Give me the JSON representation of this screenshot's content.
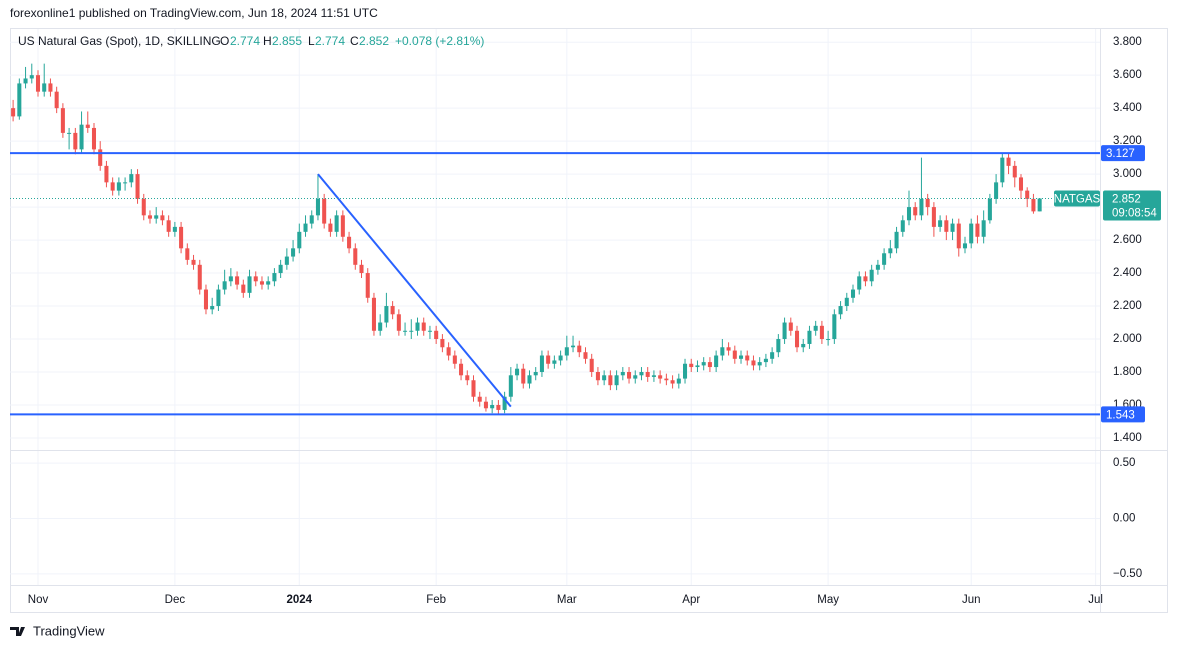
{
  "header": {
    "text": "forexonline1 published on TradingView.com, Jun 18, 2024 11:51 UTC"
  },
  "footer": {
    "brand": "TradingView"
  },
  "chart_data": {
    "type": "candlestick",
    "title": "US Natural Gas (Spot), 1D, SKILLING",
    "ohlc_labels": [
      "O",
      "H",
      "L",
      "C"
    ],
    "change": "+0.078 (+2.81%)",
    "symbol_tag": "NATGAS",
    "countdown": "09:08:54",
    "up_color": "#26a69a",
    "down_color": "#ef5350",
    "line_color": "#2962ff",
    "grid": true,
    "xlim": [
      -0.5,
      174.7
    ],
    "xticks": [
      {
        "value": 4,
        "label": "Nov"
      },
      {
        "value": 26,
        "label": "Dec"
      },
      {
        "value": 46,
        "label": "2024"
      },
      {
        "value": 68,
        "label": "Feb"
      },
      {
        "value": 89,
        "label": "Mar"
      },
      {
        "value": 109,
        "label": "Apr"
      },
      {
        "value": 131,
        "label": "May"
      },
      {
        "value": 154,
        "label": "Jun"
      },
      {
        "value": 174,
        "label": "Jul"
      }
    ],
    "ylim": [
      1.327,
      3.88
    ],
    "yticks": [
      {
        "value": 1.4,
        "label": "1.400"
      },
      {
        "value": 1.6,
        "label": "1.600"
      },
      {
        "value": 1.8,
        "label": "1.800"
      },
      {
        "value": 2.0,
        "label": "2.000"
      },
      {
        "value": 2.2,
        "label": "2.200"
      },
      {
        "value": 2.4,
        "label": "2.400"
      },
      {
        "value": 2.6,
        "label": "2.600"
      },
      {
        "value": 2.8,
        "label": "2.800"
      },
      {
        "value": 3.0,
        "label": "3.000"
      },
      {
        "value": 3.2,
        "label": "3.200"
      },
      {
        "value": 3.4,
        "label": "3.400"
      },
      {
        "value": 3.6,
        "label": "3.600"
      },
      {
        "value": 3.8,
        "label": "3.800"
      }
    ],
    "hlines": [
      3.127,
      1.543
    ],
    "trendline": {
      "x": [
        49,
        80
      ],
      "y": [
        3.0,
        1.59
      ]
    },
    "indicator": {
      "ylim": [
        -0.6,
        0.61
      ],
      "yticks": [
        {
          "value": 0.5,
          "label": "0.50"
        },
        {
          "value": 0,
          "label": "0.00"
        },
        {
          "value": -0.5,
          "label": "−0.50"
        }
      ]
    },
    "open": [
      3.4,
      3.35,
      3.55,
      3.58,
      3.6,
      3.5,
      3.55,
      3.5,
      3.4,
      3.25,
      3.25,
      3.15,
      3.3,
      3.28,
      3.15,
      3.05,
      2.95,
      2.9,
      2.95,
      2.95,
      3.0,
      2.85,
      2.75,
      2.73,
      2.75,
      2.72,
      2.65,
      2.68,
      2.55,
      2.48,
      2.45,
      2.3,
      2.18,
      2.2,
      2.3,
      2.35,
      2.38,
      2.33,
      2.28,
      2.38,
      2.35,
      2.33,
      2.35,
      2.4,
      2.45,
      2.5,
      2.55,
      2.65,
      2.7,
      2.75,
      2.85,
      2.7,
      2.65,
      2.75,
      2.62,
      2.55,
      2.45,
      2.4,
      2.25,
      2.05,
      2.1,
      2.2,
      2.15,
      2.05,
      2.05,
      2.05,
      2.1,
      2.05,
      2.05,
      2.0,
      1.95,
      1.9,
      1.85,
      1.78,
      1.75,
      1.65,
      1.62,
      1.58,
      1.6,
      1.57,
      1.65,
      1.78,
      1.82,
      1.73,
      1.78,
      1.8,
      1.9,
      1.85,
      1.87,
      1.9,
      1.95,
      1.96,
      1.92,
      1.88,
      1.8,
      1.75,
      1.78,
      1.72,
      1.78,
      1.8,
      1.76,
      1.78,
      1.8,
      1.77,
      1.78,
      1.76,
      1.75,
      1.73,
      1.76,
      1.85,
      1.83,
      1.84,
      1.86,
      1.83,
      1.9,
      1.95,
      1.93,
      1.88,
      1.9,
      1.87,
      1.84,
      1.86,
      1.88,
      1.92,
      2.0,
      2.1,
      2.05,
      1.95,
      1.97,
      2.05,
      2.08,
      2.0,
      2.0,
      2.15,
      2.2,
      2.25,
      2.3,
      2.38,
      2.35,
      2.42,
      2.45,
      2.52,
      2.55,
      2.65,
      2.72,
      2.8,
      2.75,
      2.85,
      2.8,
      2.68,
      2.72,
      2.65,
      2.7,
      2.55,
      2.58,
      2.7,
      2.62,
      2.72,
      2.85,
      2.95,
      3.1,
      3.05,
      2.98,
      2.9,
      2.85,
      2.774
    ],
    "high": [
      3.45,
      3.58,
      3.65,
      3.67,
      3.63,
      3.67,
      3.58,
      3.53,
      3.43,
      3.28,
      3.28,
      3.38,
      3.38,
      3.31,
      3.2,
      3.08,
      2.98,
      2.98,
      2.98,
      3.03,
      3.03,
      2.88,
      2.78,
      2.8,
      2.78,
      2.75,
      2.71,
      2.71,
      2.58,
      2.51,
      2.48,
      2.33,
      2.25,
      2.33,
      2.42,
      2.43,
      2.41,
      2.36,
      2.42,
      2.41,
      2.38,
      2.38,
      2.43,
      2.48,
      2.55,
      2.6,
      2.7,
      2.75,
      2.78,
      3.0,
      2.88,
      2.73,
      2.78,
      2.78,
      2.65,
      2.58,
      2.48,
      2.43,
      2.28,
      2.15,
      2.28,
      2.23,
      2.18,
      2.1,
      2.12,
      2.13,
      2.13,
      2.08,
      2.08,
      2.03,
      1.98,
      1.93,
      1.88,
      1.81,
      1.78,
      1.68,
      1.65,
      1.63,
      1.63,
      1.68,
      1.83,
      1.85,
      1.85,
      1.81,
      1.83,
      1.93,
      1.93,
      1.9,
      1.93,
      2.02,
      2.02,
      1.99,
      1.95,
      1.91,
      1.83,
      1.81,
      1.81,
      1.81,
      1.83,
      1.83,
      1.81,
      1.83,
      1.83,
      1.81,
      1.81,
      1.79,
      1.78,
      1.79,
      1.88,
      1.88,
      1.87,
      1.89,
      1.89,
      1.93,
      2.0,
      1.98,
      1.96,
      1.93,
      1.93,
      1.9,
      1.89,
      1.91,
      1.95,
      2.03,
      2.13,
      2.13,
      2.08,
      2.0,
      2.08,
      2.11,
      2.11,
      2.05,
      2.18,
      2.23,
      2.28,
      2.33,
      2.41,
      2.41,
      2.45,
      2.48,
      2.55,
      2.6,
      2.68,
      2.75,
      2.9,
      2.83,
      3.1,
      2.88,
      2.83,
      2.75,
      2.75,
      2.73,
      2.73,
      2.62,
      2.73,
      2.75,
      2.78,
      2.88,
      3.0,
      3.13,
      3.13,
      3.08,
      3.0,
      2.92,
      2.88,
      2.855
    ],
    "low": [
      3.32,
      3.33,
      3.52,
      3.55,
      3.47,
      3.47,
      3.47,
      3.37,
      3.22,
      3.15,
      3.12,
      3.13,
      3.25,
      3.12,
      3.02,
      2.92,
      2.87,
      2.87,
      2.9,
      2.92,
      2.82,
      2.72,
      2.7,
      2.7,
      2.69,
      2.62,
      2.62,
      2.52,
      2.45,
      2.42,
      2.27,
      2.15,
      2.15,
      2.17,
      2.27,
      2.32,
      2.3,
      2.25,
      2.25,
      2.32,
      2.3,
      2.3,
      2.32,
      2.37,
      2.42,
      2.47,
      2.52,
      2.62,
      2.67,
      2.72,
      2.67,
      2.62,
      2.62,
      2.59,
      2.52,
      2.42,
      2.37,
      2.22,
      2.02,
      2.02,
      2.07,
      2.12,
      2.02,
      2.02,
      2.0,
      2.02,
      2.02,
      2.0,
      1.97,
      1.92,
      1.87,
      1.82,
      1.75,
      1.72,
      1.62,
      1.59,
      1.56,
      1.55,
      1.543,
      1.55,
      1.62,
      1.75,
      1.7,
      1.7,
      1.75,
      1.77,
      1.82,
      1.82,
      1.84,
      1.87,
      1.92,
      1.89,
      1.85,
      1.77,
      1.72,
      1.72,
      1.69,
      1.69,
      1.75,
      1.73,
      1.73,
      1.75,
      1.74,
      1.74,
      1.73,
      1.72,
      1.7,
      1.7,
      1.73,
      1.8,
      1.8,
      1.81,
      1.8,
      1.8,
      1.87,
      1.9,
      1.85,
      1.85,
      1.84,
      1.81,
      1.81,
      1.83,
      1.85,
      1.89,
      1.97,
      2.02,
      1.92,
      1.92,
      1.94,
      2.02,
      1.97,
      1.96,
      1.97,
      2.12,
      2.17,
      2.22,
      2.27,
      2.32,
      2.32,
      2.39,
      2.42,
      2.49,
      2.52,
      2.62,
      2.69,
      2.72,
      2.72,
      2.75,
      2.62,
      2.65,
      2.6,
      2.6,
      2.5,
      2.52,
      2.55,
      2.58,
      2.58,
      2.7,
      2.82,
      2.92,
      3.0,
      2.92,
      2.85,
      2.8,
      2.76,
      2.774
    ],
    "close": [
      3.35,
      3.55,
      3.58,
      3.6,
      3.5,
      3.55,
      3.5,
      3.4,
      3.25,
      3.25,
      3.15,
      3.3,
      3.28,
      3.15,
      3.05,
      2.95,
      2.9,
      2.95,
      2.95,
      3.0,
      2.85,
      2.75,
      2.73,
      2.75,
      2.72,
      2.65,
      2.68,
      2.55,
      2.48,
      2.45,
      2.3,
      2.18,
      2.2,
      2.3,
      2.35,
      2.38,
      2.33,
      2.28,
      2.38,
      2.35,
      2.33,
      2.35,
      2.4,
      2.45,
      2.5,
      2.55,
      2.65,
      2.7,
      2.75,
      2.85,
      2.7,
      2.65,
      2.75,
      2.62,
      2.55,
      2.45,
      2.4,
      2.25,
      2.05,
      2.1,
      2.2,
      2.15,
      2.05,
      2.05,
      2.05,
      2.1,
      2.05,
      2.05,
      2.0,
      1.95,
      1.9,
      1.85,
      1.78,
      1.75,
      1.65,
      1.62,
      1.58,
      1.6,
      1.57,
      1.65,
      1.78,
      1.82,
      1.73,
      1.78,
      1.8,
      1.9,
      1.85,
      1.87,
      1.9,
      1.95,
      1.96,
      1.92,
      1.88,
      1.8,
      1.75,
      1.78,
      1.72,
      1.78,
      1.8,
      1.76,
      1.78,
      1.8,
      1.77,
      1.78,
      1.76,
      1.75,
      1.73,
      1.76,
      1.85,
      1.83,
      1.84,
      1.86,
      1.83,
      1.9,
      1.95,
      1.93,
      1.88,
      1.9,
      1.87,
      1.84,
      1.86,
      1.88,
      1.92,
      2.0,
      2.1,
      2.05,
      1.95,
      1.97,
      2.05,
      2.08,
      2.0,
      2.0,
      2.15,
      2.2,
      2.25,
      2.3,
      2.38,
      2.35,
      2.42,
      2.45,
      2.52,
      2.55,
      2.65,
      2.72,
      2.8,
      2.75,
      2.85,
      2.8,
      2.68,
      2.72,
      2.65,
      2.7,
      2.55,
      2.58,
      2.7,
      2.62,
      2.72,
      2.85,
      2.95,
      3.1,
      3.05,
      2.98,
      2.9,
      2.85,
      2.774,
      2.852
    ]
  }
}
